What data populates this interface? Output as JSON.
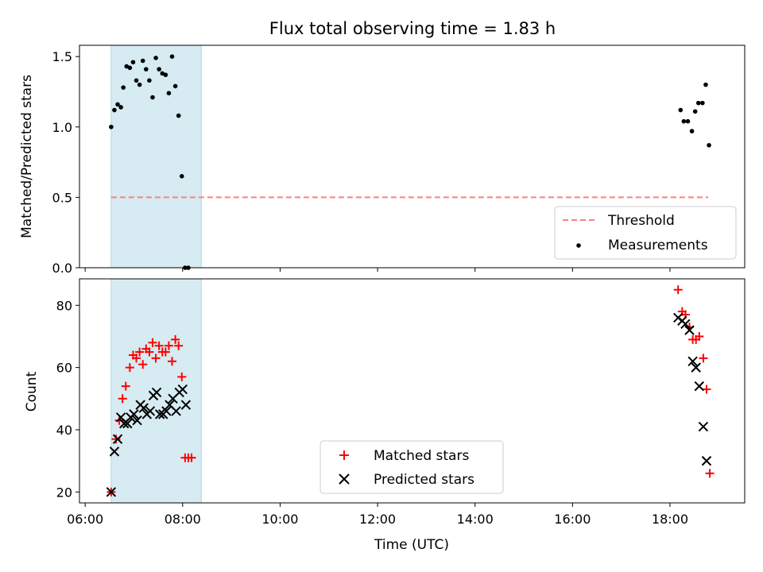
{
  "figure": {
    "title": "Flux total observing time = 1.83 h"
  },
  "x_axis": {
    "label": "Time (UTC)",
    "ticks": [
      "06:00",
      "08:00",
      "10:00",
      "12:00",
      "14:00",
      "16:00",
      "18:00"
    ]
  },
  "colors": {
    "shade": "#add8e6",
    "threshold": "#ff7f7f",
    "measurements": "#000000",
    "matched": "#ff0000",
    "predicted": "#000000"
  },
  "chart_data": [
    {
      "type": "scatter",
      "panel": "top",
      "ylabel": "Matched/Predicted stars",
      "ylim": [
        0,
        1.58
      ],
      "yticks": [
        "0.0",
        "0.5",
        "1.0",
        "1.5"
      ],
      "xlim": [
        "05:53",
        "19:32"
      ],
      "grid": false,
      "legend": "bottom-right",
      "shaded_interval": [
        "06:32",
        "08:23"
      ],
      "series": [
        {
          "name": "Threshold",
          "style": "dashed-line",
          "x": [
            "06:32",
            "18:47"
          ],
          "y": [
            0.5,
            0.5
          ]
        },
        {
          "name": "Measurements",
          "style": "dot",
          "points": [
            [
              "06:32",
              1.0
            ],
            [
              "06:36",
              1.12
            ],
            [
              "06:40",
              1.16
            ],
            [
              "06:44",
              1.14
            ],
            [
              "06:47",
              1.28
            ],
            [
              "06:51",
              1.43
            ],
            [
              "06:55",
              1.42
            ],
            [
              "06:59",
              1.46
            ],
            [
              "07:03",
              1.33
            ],
            [
              "07:07",
              1.3
            ],
            [
              "07:11",
              1.47
            ],
            [
              "07:15",
              1.41
            ],
            [
              "07:19",
              1.33
            ],
            [
              "07:23",
              1.21
            ],
            [
              "07:27",
              1.49
            ],
            [
              "07:31",
              1.41
            ],
            [
              "07:35",
              1.38
            ],
            [
              "07:39",
              1.37
            ],
            [
              "07:43",
              1.24
            ],
            [
              "07:47",
              1.5
            ],
            [
              "07:51",
              1.29
            ],
            [
              "07:55",
              1.08
            ],
            [
              "07:59",
              0.65
            ],
            [
              "08:03",
              0.0
            ],
            [
              "08:07",
              0.0
            ],
            [
              "18:13",
              1.12
            ],
            [
              "18:17",
              1.04
            ],
            [
              "18:22",
              1.04
            ],
            [
              "18:27",
              0.97
            ],
            [
              "18:31",
              1.11
            ],
            [
              "18:35",
              1.17
            ],
            [
              "18:40",
              1.17
            ],
            [
              "18:44",
              1.3
            ],
            [
              "18:48",
              0.87
            ]
          ]
        }
      ]
    },
    {
      "type": "scatter",
      "panel": "bottom",
      "ylabel": "Count",
      "ylim": [
        16.5,
        88.5
      ],
      "yticks": [
        "20",
        "40",
        "60",
        "80"
      ],
      "xlim": [
        "05:53",
        "19:32"
      ],
      "grid": false,
      "legend": "bottom-center",
      "shaded_interval": [
        "06:32",
        "08:23"
      ],
      "series": [
        {
          "name": "Matched stars",
          "marker": "plus",
          "points": [
            [
              "06:32",
              20
            ],
            [
              "06:38",
              37
            ],
            [
              "06:42",
              43
            ],
            [
              "06:46",
              50
            ],
            [
              "06:50",
              54
            ],
            [
              "06:55",
              60
            ],
            [
              "06:59",
              64
            ],
            [
              "07:03",
              63
            ],
            [
              "07:07",
              65
            ],
            [
              "07:11",
              61
            ],
            [
              "07:15",
              66
            ],
            [
              "07:19",
              65
            ],
            [
              "07:23",
              68
            ],
            [
              "07:27",
              63
            ],
            [
              "07:31",
              67
            ],
            [
              "07:35",
              65
            ],
            [
              "07:39",
              65
            ],
            [
              "07:43",
              67
            ],
            [
              "07:47",
              62
            ],
            [
              "07:51",
              69
            ],
            [
              "07:55",
              67
            ],
            [
              "07:59",
              57
            ],
            [
              "08:03",
              31
            ],
            [
              "08:07",
              31
            ],
            [
              "08:11",
              31
            ],
            [
              "18:10",
              85
            ],
            [
              "18:15",
              78
            ],
            [
              "18:19",
              77
            ],
            [
              "18:24",
              73
            ],
            [
              "18:28",
              69
            ],
            [
              "18:32",
              69
            ],
            [
              "18:36",
              70
            ],
            [
              "18:41",
              63
            ],
            [
              "18:45",
              53
            ],
            [
              "18:49",
              26
            ]
          ]
        },
        {
          "name": "Predicted stars",
          "marker": "cross",
          "points": [
            [
              "06:32",
              20
            ],
            [
              "06:36",
              33
            ],
            [
              "06:40",
              37
            ],
            [
              "06:44",
              44
            ],
            [
              "06:48",
              42
            ],
            [
              "06:52",
              42
            ],
            [
              "06:56",
              44
            ],
            [
              "07:00",
              45
            ],
            [
              "07:04",
              43
            ],
            [
              "07:08",
              48
            ],
            [
              "07:12",
              47
            ],
            [
              "07:16",
              45
            ],
            [
              "07:20",
              46
            ],
            [
              "07:24",
              51
            ],
            [
              "07:28",
              52
            ],
            [
              "07:32",
              45
            ],
            [
              "07:36",
              45
            ],
            [
              "07:40",
              46
            ],
            [
              "07:44",
              48
            ],
            [
              "07:48",
              50
            ],
            [
              "07:52",
              46
            ],
            [
              "07:56",
              52
            ],
            [
              "08:00",
              53
            ],
            [
              "08:04",
              48
            ],
            [
              "18:10",
              76
            ],
            [
              "18:15",
              75
            ],
            [
              "18:19",
              74
            ],
            [
              "18:24",
              72
            ],
            [
              "18:28",
              62
            ],
            [
              "18:32",
              60
            ],
            [
              "18:36",
              54
            ],
            [
              "18:41",
              41
            ],
            [
              "18:45",
              30
            ]
          ]
        }
      ]
    }
  ]
}
